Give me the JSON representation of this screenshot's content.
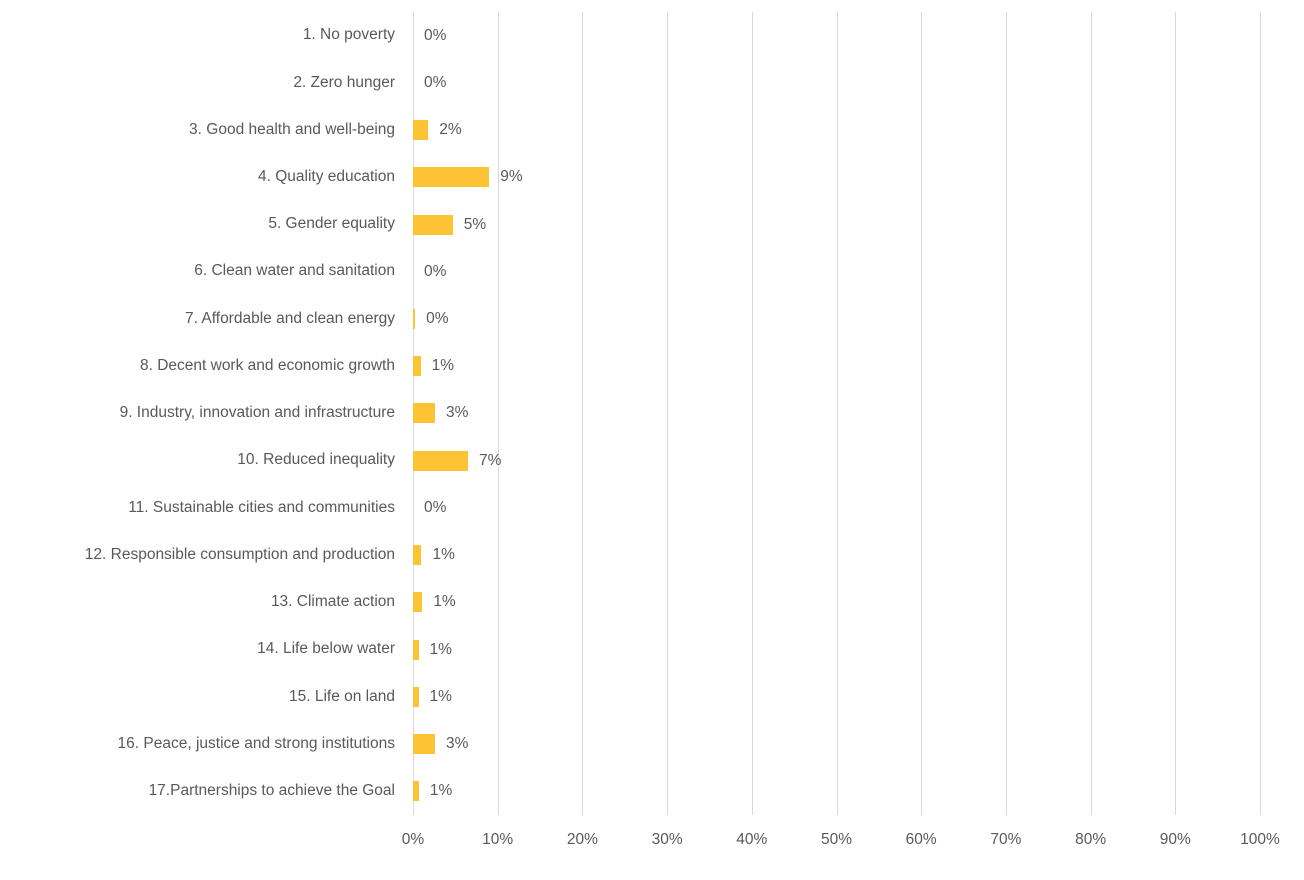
{
  "chart_data": {
    "type": "bar",
    "orientation": "horizontal",
    "title": "",
    "xlabel": "",
    "ylabel": "",
    "categories": [
      "1. No poverty",
      "2. Zero hunger",
      "3. Good health and well-being",
      "4. Quality education",
      "5. Gender equality",
      "6. Clean water and sanitation",
      "7. Affordable and clean energy",
      "8. Decent work and economic growth",
      "9. Industry, innovation and infrastructure",
      "10. Reduced inequality",
      "11. Sustainable cities and communities",
      "12. Responsible consumption and production",
      "13. Climate action",
      "14. Life below water",
      "15. Life on land",
      "16. Peace, justice and strong institutions",
      "17.Partnerships to achieve the Goal"
    ],
    "values": [
      0,
      0,
      2,
      9,
      5,
      0,
      0,
      1,
      3,
      7,
      0,
      1,
      1,
      1,
      1,
      3,
      1
    ],
    "value_labels": [
      "0%",
      "0%",
      "2%",
      "9%",
      "5%",
      "0%",
      "0%",
      "1%",
      "3%",
      "7%",
      "0%",
      "1%",
      "1%",
      "1%",
      "1%",
      "3%",
      "1%"
    ],
    "bar_display_pct": [
      0,
      0,
      1.8,
      9,
      4.7,
      0,
      0.25,
      0.9,
      2.6,
      6.5,
      0,
      1.0,
      1.1,
      0.65,
      0.65,
      2.6,
      0.7
    ],
    "x_ticks": [
      "0%",
      "10%",
      "20%",
      "30%",
      "40%",
      "50%",
      "60%",
      "70%",
      "80%",
      "90%",
      "100%"
    ],
    "xlim": [
      0,
      100
    ],
    "grid": true,
    "legend": "none",
    "colors": {
      "bar": "#fcc335",
      "gridline": "#d9d9d9",
      "text": "#595959",
      "background": "#ffffff"
    }
  }
}
